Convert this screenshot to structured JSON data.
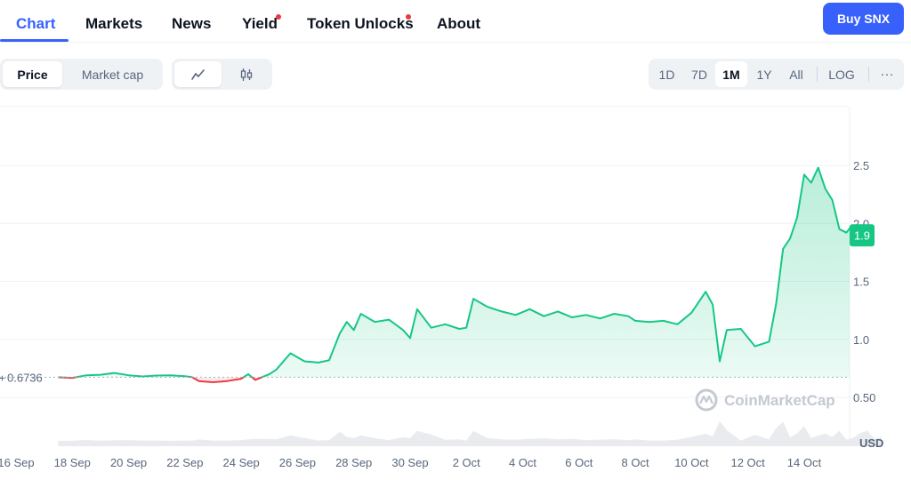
{
  "nav": {
    "tabs": [
      {
        "label": "Chart",
        "active": true
      },
      {
        "label": "Markets"
      },
      {
        "label": "News"
      },
      {
        "label": "Yield",
        "badge_dot": true
      },
      {
        "label": "Token Unlocks",
        "badge_dot": true
      },
      {
        "label": "About"
      }
    ],
    "buy_label": "Buy SNX"
  },
  "toolbar": {
    "metric_options": [
      "Price",
      "Market cap"
    ],
    "metric_selected": "Price",
    "chart_type_icons": [
      "line-chart-icon",
      "candlestick-icon"
    ],
    "chart_type_selected": "line-chart-icon",
    "ranges": [
      "1D",
      "7D",
      "1M",
      "1Y",
      "All",
      "LOG"
    ],
    "range_selected": "1M",
    "more_label": "···"
  },
  "colors": {
    "accent": "#3861fb",
    "up": "#16c784",
    "down": "#ea3943",
    "volume": "#e3e6ea"
  },
  "chart_data": {
    "type": "line",
    "currency_label": "USD",
    "reference_label": "0.6736",
    "reference_value": 0.6736,
    "current_price_label": "1.9",
    "watermark": "CoinMarketCap",
    "y_ticks": [
      "0.50",
      "1.0",
      "1.5",
      "2.0",
      "2.5"
    ],
    "ylim": [
      0.26,
      3.0
    ],
    "x_ticks": [
      "16 Sep",
      "18 Sep",
      "20 Sep",
      "22 Sep",
      "24 Sep",
      "26 Sep",
      "28 Sep",
      "30 Sep",
      "2 Oct",
      "4 Oct",
      "6 Oct",
      "8 Oct",
      "10 Oct",
      "12 Oct",
      "14 Oct"
    ],
    "x_start": "2024-09-16",
    "grid": true,
    "series": [
      {
        "values": [
          [
            "2024-09-17 12:00",
            0.673
          ],
          [
            "2024-09-18 00:00",
            0.668
          ],
          [
            "2024-09-18 12:00",
            0.69
          ],
          [
            "2024-09-19 00:00",
            0.695
          ],
          [
            "2024-09-19 12:00",
            0.71
          ],
          [
            "2024-09-20 00:00",
            0.69
          ],
          [
            "2024-09-20 12:00",
            0.68
          ],
          [
            "2024-09-21 00:00",
            0.688
          ],
          [
            "2024-09-21 12:00",
            0.69
          ],
          [
            "2024-09-22 00:00",
            0.682
          ],
          [
            "2024-09-22 06:00",
            0.675
          ],
          [
            "2024-09-22 12:00",
            0.64
          ],
          [
            "2024-09-23 00:00",
            0.63
          ],
          [
            "2024-09-23 12:00",
            0.64
          ],
          [
            "2024-09-24 00:00",
            0.66
          ],
          [
            "2024-09-24 06:00",
            0.7
          ],
          [
            "2024-09-24 12:00",
            0.65
          ],
          [
            "2024-09-25 00:00",
            0.7
          ],
          [
            "2024-09-25 06:00",
            0.74
          ],
          [
            "2024-09-25 18:00",
            0.88
          ],
          [
            "2024-09-26 06:00",
            0.81
          ],
          [
            "2024-09-26 18:00",
            0.8
          ],
          [
            "2024-09-27 03:00",
            0.82
          ],
          [
            "2024-09-27 12:00",
            1.05
          ],
          [
            "2024-09-27 18:00",
            1.15
          ],
          [
            "2024-09-28 00:00",
            1.08
          ],
          [
            "2024-09-28 06:00",
            1.22
          ],
          [
            "2024-09-28 18:00",
            1.15
          ],
          [
            "2024-09-29 06:00",
            1.17
          ],
          [
            "2024-09-29 18:00",
            1.08
          ],
          [
            "2024-09-30 00:00",
            1.01
          ],
          [
            "2024-09-30 06:00",
            1.26
          ],
          [
            "2024-09-30 18:00",
            1.1
          ],
          [
            "2024-10-01 06:00",
            1.13
          ],
          [
            "2024-10-01 18:00",
            1.09
          ],
          [
            "2024-10-02 00:00",
            1.1
          ],
          [
            "2024-10-02 06:00",
            1.35
          ],
          [
            "2024-10-02 18:00",
            1.28
          ],
          [
            "2024-10-03 06:00",
            1.24
          ],
          [
            "2024-10-03 18:00",
            1.21
          ],
          [
            "2024-10-04 06:00",
            1.26
          ],
          [
            "2024-10-04 18:00",
            1.2
          ],
          [
            "2024-10-05 06:00",
            1.24
          ],
          [
            "2024-10-05 18:00",
            1.19
          ],
          [
            "2024-10-06 06:00",
            1.21
          ],
          [
            "2024-10-06 18:00",
            1.18
          ],
          [
            "2024-10-07 06:00",
            1.22
          ],
          [
            "2024-10-07 18:00",
            1.2
          ],
          [
            "2024-10-08 00:00",
            1.16
          ],
          [
            "2024-10-08 12:00",
            1.15
          ],
          [
            "2024-10-09 00:00",
            1.16
          ],
          [
            "2024-10-09 12:00",
            1.13
          ],
          [
            "2024-10-10 00:00",
            1.23
          ],
          [
            "2024-10-10 12:00",
            1.41
          ],
          [
            "2024-10-10 18:00",
            1.3
          ],
          [
            "2024-10-11 00:00",
            0.81
          ],
          [
            "2024-10-11 06:00",
            1.08
          ],
          [
            "2024-10-11 18:00",
            1.09
          ],
          [
            "2024-10-12 06:00",
            0.94
          ],
          [
            "2024-10-12 18:00",
            0.98
          ],
          [
            "2024-10-13 00:00",
            1.3
          ],
          [
            "2024-10-13 06:00",
            1.78
          ],
          [
            "2024-10-13 12:00",
            1.87
          ],
          [
            "2024-10-13 18:00",
            2.05
          ],
          [
            "2024-10-14 00:00",
            2.42
          ],
          [
            "2024-10-14 06:00",
            2.35
          ],
          [
            "2024-10-14 12:00",
            2.48
          ],
          [
            "2024-10-14 18:00",
            2.3
          ],
          [
            "2024-10-15 00:00",
            2.2
          ],
          [
            "2024-10-15 06:00",
            1.95
          ],
          [
            "2024-10-15 12:00",
            1.92
          ],
          [
            "2024-10-15 18:00",
            2.0
          ],
          [
            "2024-10-16 00:00",
            2.2
          ],
          [
            "2024-10-16 06:00",
            1.95
          ],
          [
            "2024-10-16 12:00",
            2.0
          ],
          [
            "2024-10-16 18:00",
            1.9
          ]
        ]
      }
    ]
  }
}
